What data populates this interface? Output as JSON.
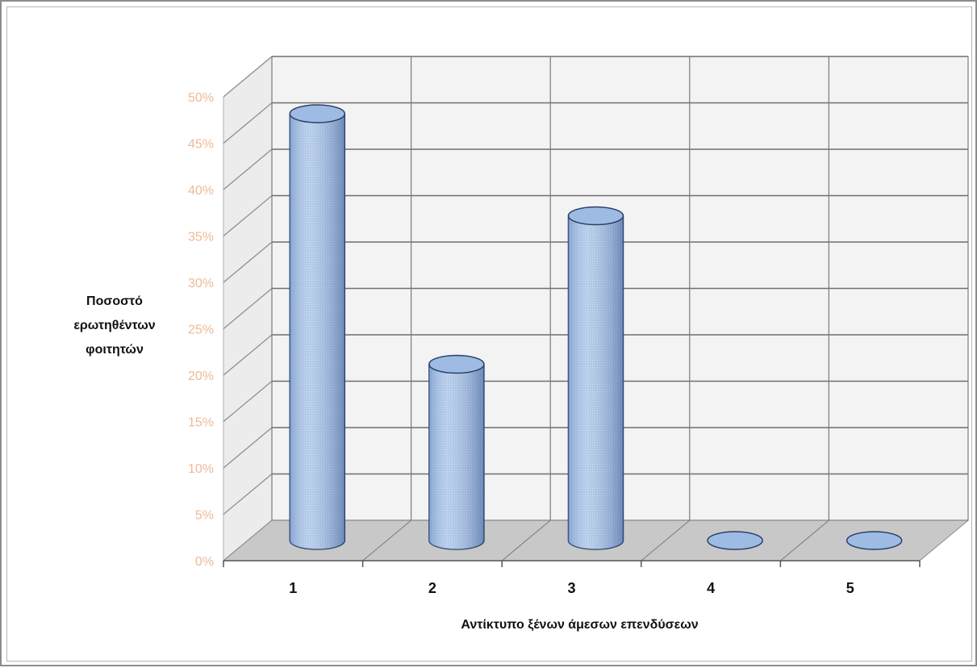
{
  "chart_data": {
    "type": "bar",
    "style": "3d-cylinder",
    "title": "",
    "categories": [
      "1",
      "2",
      "3",
      "4",
      "5"
    ],
    "values": [
      46,
      19,
      35,
      0,
      0
    ],
    "unit": "%",
    "ylabel_lines": [
      "Ποσοστό",
      "ερωτηθέντων",
      "φοιτητών"
    ],
    "xlabel": "Αντίκτυπο ξένων άμεσων επενδύσεων",
    "yticks": [
      "0%",
      "5%",
      "10%",
      "15%",
      "20%",
      "25%",
      "30%",
      "35%",
      "40%",
      "45%",
      "50%"
    ],
    "ylim": [
      0,
      50
    ],
    "grid": true,
    "legend": "none",
    "colors": {
      "bar": "#9dbbe3",
      "bar_edge": "#2a3f66",
      "tick_label": "#f0b995",
      "floor": "#c8c8c8",
      "wall": "#f3f3f3"
    }
  }
}
